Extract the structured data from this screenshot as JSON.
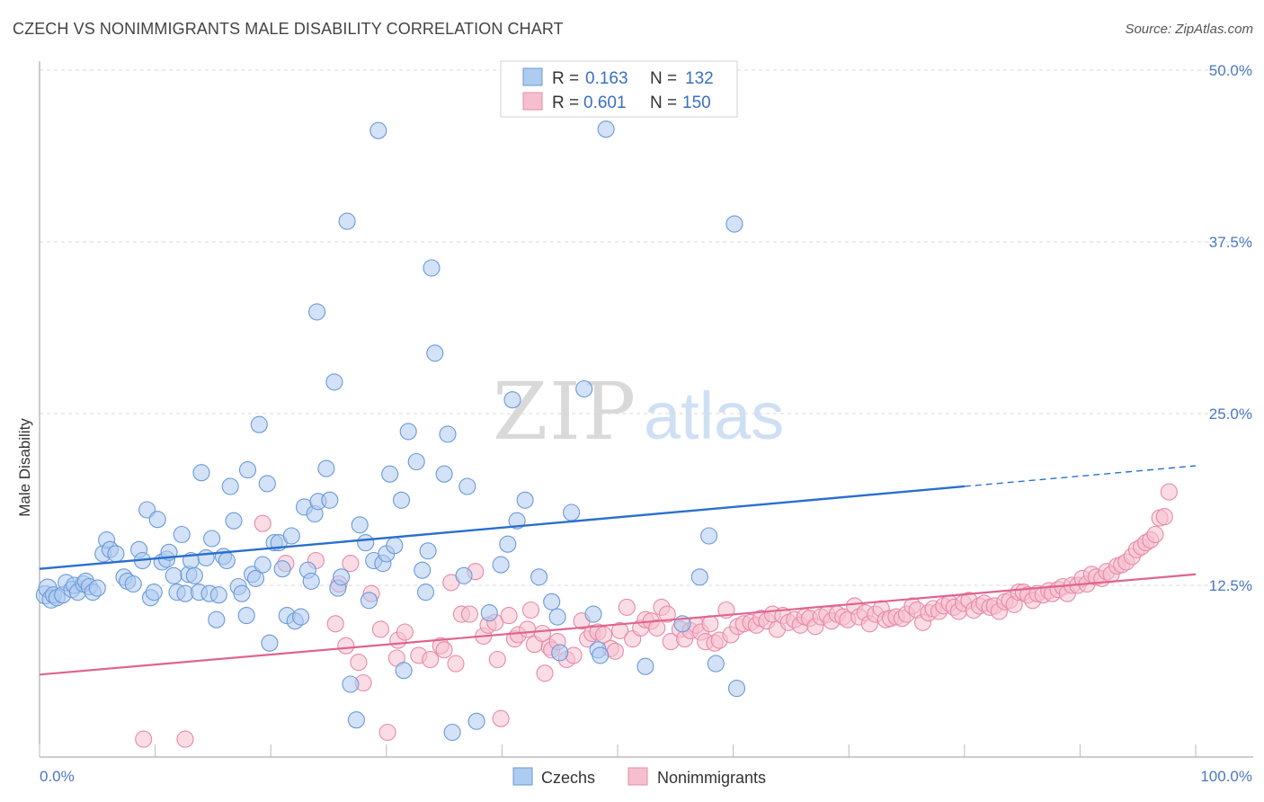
{
  "title": "CZECH VS NONIMMIGRANTS MALE DISABILITY CORRELATION CHART",
  "source": "Source: ZipAtlas.com",
  "watermark": {
    "zip": "ZIP",
    "atlas": "atlas"
  },
  "colors": {
    "blue_fill": "#aecbf0",
    "blue_stroke": "#6a9ad8",
    "blue_line": "#2a6fce",
    "pink_fill": "#f6bfd0",
    "pink_stroke": "#e889a8",
    "pink_line": "#e0648e",
    "tick_text": "#4a78c2",
    "grid": "#d8d8d8"
  },
  "legend": {
    "r_label": "R =",
    "n_label": "N =",
    "rows": [
      {
        "r": "0.163",
        "n": "132"
      },
      {
        "r": "0.601",
        "n": "150"
      }
    ]
  },
  "chart_data": {
    "type": "scatter",
    "title": "CZECH VS NONIMMIGRANTS MALE DISABILITY CORRELATION CHART",
    "xlabel": "",
    "ylabel": "Male Disability",
    "xlim": [
      0,
      100
    ],
    "ylim": [
      0,
      50
    ],
    "x_tick_labels": [
      "0.0%",
      "100.0%"
    ],
    "y_ticks": [
      12.5,
      25.0,
      37.5,
      50.0
    ],
    "y_tick_labels": [
      "12.5%",
      "25.0%",
      "37.5%",
      "50.0%"
    ],
    "grid": "horizontal dashed",
    "legend_position": "top-center",
    "series": [
      {
        "name": "Czechs",
        "color": "#aecbf0",
        "trend": {
          "x": [
            0,
            80
          ],
          "y": [
            13.7,
            19.7
          ],
          "dashed_extension": {
            "x": [
              80,
              100
            ],
            "y": [
              19.7,
              21.2
            ]
          }
        },
        "points": [
          [
            0.5,
            11.8
          ],
          [
            0.7,
            12.3
          ],
          [
            1.0,
            11.5
          ],
          [
            1.2,
            11.8
          ],
          [
            1.5,
            11.6
          ],
          [
            2.0,
            11.8
          ],
          [
            2.3,
            12.7
          ],
          [
            2.8,
            12.2
          ],
          [
            3.0,
            12.5
          ],
          [
            3.3,
            12.0
          ],
          [
            3.8,
            12.6
          ],
          [
            4.0,
            12.8
          ],
          [
            4.3,
            12.4
          ],
          [
            4.6,
            12.0
          ],
          [
            5.0,
            12.3
          ],
          [
            5.5,
            14.8
          ],
          [
            5.8,
            15.8
          ],
          [
            6.1,
            15.1
          ],
          [
            6.6,
            14.8
          ],
          [
            7.3,
            13.1
          ],
          [
            7.6,
            12.8
          ],
          [
            8.1,
            12.6
          ],
          [
            8.6,
            15.1
          ],
          [
            8.9,
            14.3
          ],
          [
            9.3,
            18.0
          ],
          [
            9.6,
            11.6
          ],
          [
            9.9,
            12.0
          ],
          [
            10.2,
            17.3
          ],
          [
            10.6,
            14.2
          ],
          [
            11.0,
            14.4
          ],
          [
            11.2,
            14.9
          ],
          [
            11.6,
            13.2
          ],
          [
            11.9,
            12.0
          ],
          [
            12.3,
            16.2
          ],
          [
            12.6,
            11.9
          ],
          [
            12.9,
            13.3
          ],
          [
            13.1,
            14.3
          ],
          [
            13.4,
            13.2
          ],
          [
            13.8,
            12.0
          ],
          [
            14.0,
            20.7
          ],
          [
            14.4,
            14.5
          ],
          [
            14.7,
            11.9
          ],
          [
            14.9,
            15.9
          ],
          [
            15.3,
            10.0
          ],
          [
            15.5,
            11.8
          ],
          [
            15.9,
            14.6
          ],
          [
            16.2,
            14.3
          ],
          [
            16.5,
            19.7
          ],
          [
            16.8,
            17.2
          ],
          [
            17.2,
            12.4
          ],
          [
            17.5,
            11.9
          ],
          [
            17.9,
            10.3
          ],
          [
            18.0,
            20.9
          ],
          [
            18.4,
            13.3
          ],
          [
            18.7,
            13.0
          ],
          [
            19.0,
            24.2
          ],
          [
            19.3,
            14.0
          ],
          [
            19.7,
            19.9
          ],
          [
            19.9,
            8.3
          ],
          [
            20.3,
            15.6
          ],
          [
            20.7,
            15.6
          ],
          [
            21.0,
            13.7
          ],
          [
            21.4,
            10.3
          ],
          [
            21.8,
            16.1
          ],
          [
            22.1,
            9.9
          ],
          [
            22.6,
            10.2
          ],
          [
            22.9,
            18.2
          ],
          [
            23.2,
            13.6
          ],
          [
            23.5,
            12.8
          ],
          [
            23.8,
            17.7
          ],
          [
            24.0,
            32.4
          ],
          [
            24.1,
            18.6
          ],
          [
            24.8,
            21.0
          ],
          [
            25.1,
            18.7
          ],
          [
            25.5,
            27.3
          ],
          [
            25.8,
            12.3
          ],
          [
            26.1,
            13.1
          ],
          [
            26.6,
            39.0
          ],
          [
            26.9,
            5.3
          ],
          [
            27.4,
            2.7
          ],
          [
            27.7,
            16.9
          ],
          [
            28.2,
            15.6
          ],
          [
            28.5,
            11.4
          ],
          [
            28.9,
            14.3
          ],
          [
            29.3,
            45.6
          ],
          [
            29.7,
            14.1
          ],
          [
            30.0,
            14.8
          ],
          [
            30.3,
            20.6
          ],
          [
            30.7,
            15.4
          ],
          [
            31.3,
            18.7
          ],
          [
            31.5,
            6.3
          ],
          [
            31.9,
            23.7
          ],
          [
            32.6,
            21.5
          ],
          [
            33.1,
            13.6
          ],
          [
            33.4,
            12.0
          ],
          [
            33.6,
            15.0
          ],
          [
            33.9,
            35.6
          ],
          [
            34.2,
            29.4
          ],
          [
            35.0,
            20.6
          ],
          [
            35.3,
            23.5
          ],
          [
            35.7,
            1.8
          ],
          [
            36.7,
            13.2
          ],
          [
            37.0,
            19.7
          ],
          [
            37.8,
            2.6
          ],
          [
            38.9,
            10.5
          ],
          [
            39.9,
            14.0
          ],
          [
            40.5,
            15.5
          ],
          [
            40.9,
            26.0
          ],
          [
            41.3,
            17.2
          ],
          [
            42.0,
            18.7
          ],
          [
            43.2,
            13.1
          ],
          [
            44.3,
            11.3
          ],
          [
            44.8,
            10.2
          ],
          [
            45.0,
            7.6
          ],
          [
            46.0,
            17.8
          ],
          [
            47.1,
            26.8
          ],
          [
            47.9,
            10.4
          ],
          [
            48.3,
            7.8
          ],
          [
            48.5,
            7.4
          ],
          [
            49.0,
            45.7
          ],
          [
            52.4,
            6.6
          ],
          [
            55.6,
            9.7
          ],
          [
            57.1,
            13.1
          ],
          [
            57.9,
            16.1
          ],
          [
            58.5,
            6.8
          ],
          [
            60.1,
            38.8
          ],
          [
            60.3,
            5.0
          ]
        ]
      },
      {
        "name": "Nonimmigrants",
        "color": "#f6bfd0",
        "trend": {
          "x": [
            0,
            100
          ],
          "y": [
            6.0,
            13.3
          ]
        },
        "points": [
          [
            9.0,
            1.3
          ],
          [
            12.6,
            1.3
          ],
          [
            19.3,
            17.0
          ],
          [
            21.3,
            14.1
          ],
          [
            23.9,
            14.3
          ],
          [
            25.6,
            9.7
          ],
          [
            25.9,
            12.6
          ],
          [
            26.5,
            8.1
          ],
          [
            26.9,
            14.1
          ],
          [
            27.6,
            6.9
          ],
          [
            28.0,
            5.4
          ],
          [
            28.7,
            11.9
          ],
          [
            29.5,
            9.3
          ],
          [
            30.1,
            1.8
          ],
          [
            30.9,
            7.2
          ],
          [
            31.0,
            8.5
          ],
          [
            31.6,
            9.1
          ],
          [
            32.8,
            7.4
          ],
          [
            33.8,
            7.1
          ],
          [
            34.7,
            8.1
          ],
          [
            35.0,
            7.8
          ],
          [
            35.6,
            12.7
          ],
          [
            36.0,
            6.8
          ],
          [
            36.5,
            10.4
          ],
          [
            37.2,
            10.4
          ],
          [
            37.7,
            13.5
          ],
          [
            38.4,
            8.8
          ],
          [
            38.8,
            9.6
          ],
          [
            39.4,
            9.8
          ],
          [
            39.6,
            7.1
          ],
          [
            39.9,
            2.8
          ],
          [
            40.6,
            10.3
          ],
          [
            41.1,
            8.6
          ],
          [
            41.4,
            8.9
          ],
          [
            42.2,
            9.3
          ],
          [
            42.5,
            10.7
          ],
          [
            42.8,
            8.2
          ],
          [
            43.5,
            9.0
          ],
          [
            43.7,
            6.1
          ],
          [
            44.1,
            8.0
          ],
          [
            44.3,
            7.8
          ],
          [
            44.8,
            8.4
          ],
          [
            45.6,
            7.1
          ],
          [
            46.2,
            7.4
          ],
          [
            46.9,
            9.9
          ],
          [
            47.4,
            8.6
          ],
          [
            47.8,
            9.0
          ],
          [
            48.3,
            9.1
          ],
          [
            48.8,
            8.9
          ],
          [
            49.4,
            7.9
          ],
          [
            49.8,
            7.7
          ],
          [
            50.2,
            9.2
          ],
          [
            50.8,
            10.9
          ],
          [
            51.3,
            8.6
          ],
          [
            52.0,
            9.4
          ],
          [
            52.4,
            10.0
          ],
          [
            52.9,
            9.9
          ],
          [
            53.4,
            9.4
          ],
          [
            53.8,
            10.9
          ],
          [
            54.3,
            10.4
          ],
          [
            54.6,
            8.4
          ],
          [
            55.4,
            9.3
          ],
          [
            55.8,
            8.6
          ],
          [
            56.3,
            9.2
          ],
          [
            56.8,
            9.6
          ],
          [
            57.2,
            9.1
          ],
          [
            57.6,
            8.4
          ],
          [
            58.0,
            9.7
          ],
          [
            58.4,
            8.3
          ],
          [
            58.8,
            8.5
          ],
          [
            59.4,
            10.7
          ],
          [
            59.8,
            8.9
          ],
          [
            60.4,
            9.5
          ],
          [
            60.9,
            9.7
          ],
          [
            61.5,
            9.8
          ],
          [
            62.0,
            9.6
          ],
          [
            62.4,
            10.1
          ],
          [
            62.9,
            9.9
          ],
          [
            63.4,
            10.4
          ],
          [
            63.8,
            9.3
          ],
          [
            64.3,
            10.3
          ],
          [
            64.8,
            9.8
          ],
          [
            65.3,
            10.0
          ],
          [
            65.8,
            9.6
          ],
          [
            66.2,
            10.2
          ],
          [
            66.6,
            10.1
          ],
          [
            67.1,
            9.5
          ],
          [
            67.6,
            10.2
          ],
          [
            68.1,
            10.4
          ],
          [
            68.5,
            9.9
          ],
          [
            69.0,
            10.4
          ],
          [
            69.5,
            10.2
          ],
          [
            69.9,
            10.0
          ],
          [
            70.5,
            11.0
          ],
          [
            70.9,
            10.2
          ],
          [
            71.4,
            10.5
          ],
          [
            71.8,
            9.7
          ],
          [
            72.3,
            10.4
          ],
          [
            72.8,
            10.8
          ],
          [
            73.2,
            10.0
          ],
          [
            73.6,
            10.1
          ],
          [
            74.1,
            10.2
          ],
          [
            74.6,
            10.1
          ],
          [
            75.0,
            10.4
          ],
          [
            75.5,
            11.0
          ],
          [
            75.9,
            10.7
          ],
          [
            76.4,
            9.8
          ],
          [
            76.9,
            10.5
          ],
          [
            77.3,
            10.8
          ],
          [
            77.8,
            10.6
          ],
          [
            78.2,
            11.0
          ],
          [
            78.7,
            11.2
          ],
          [
            79.1,
            10.9
          ],
          [
            79.5,
            10.6
          ],
          [
            79.9,
            11.2
          ],
          [
            80.4,
            11.4
          ],
          [
            80.8,
            10.7
          ],
          [
            81.3,
            11.0
          ],
          [
            81.7,
            11.2
          ],
          [
            82.2,
            10.9
          ],
          [
            82.6,
            11.0
          ],
          [
            83.0,
            10.6
          ],
          [
            83.5,
            11.3
          ],
          [
            83.9,
            11.4
          ],
          [
            84.3,
            11.1
          ],
          [
            84.7,
            12.0
          ],
          [
            85.1,
            12.0
          ],
          [
            85.5,
            11.8
          ],
          [
            85.9,
            11.4
          ],
          [
            86.3,
            11.9
          ],
          [
            86.8,
            11.8
          ],
          [
            87.3,
            12.1
          ],
          [
            87.6,
            11.9
          ],
          [
            88.1,
            12.2
          ],
          [
            88.5,
            12.4
          ],
          [
            88.9,
            11.9
          ],
          [
            89.3,
            12.5
          ],
          [
            89.8,
            12.5
          ],
          [
            90.2,
            13.0
          ],
          [
            90.6,
            12.6
          ],
          [
            91.0,
            13.3
          ],
          [
            91.4,
            13.1
          ],
          [
            91.9,
            13.0
          ],
          [
            92.3,
            13.5
          ],
          [
            92.7,
            13.3
          ],
          [
            93.2,
            13.9
          ],
          [
            93.6,
            14.0
          ],
          [
            94.0,
            14.2
          ],
          [
            94.5,
            14.6
          ],
          [
            94.9,
            15.1
          ],
          [
            95.3,
            15.3
          ],
          [
            95.7,
            15.6
          ],
          [
            96.1,
            15.8
          ],
          [
            96.5,
            16.2
          ],
          [
            96.9,
            17.4
          ],
          [
            97.3,
            17.5
          ],
          [
            97.7,
            19.3
          ]
        ]
      }
    ]
  },
  "bottom_legend": {
    "items": [
      "Czechs",
      "Nonimmigrants"
    ]
  }
}
